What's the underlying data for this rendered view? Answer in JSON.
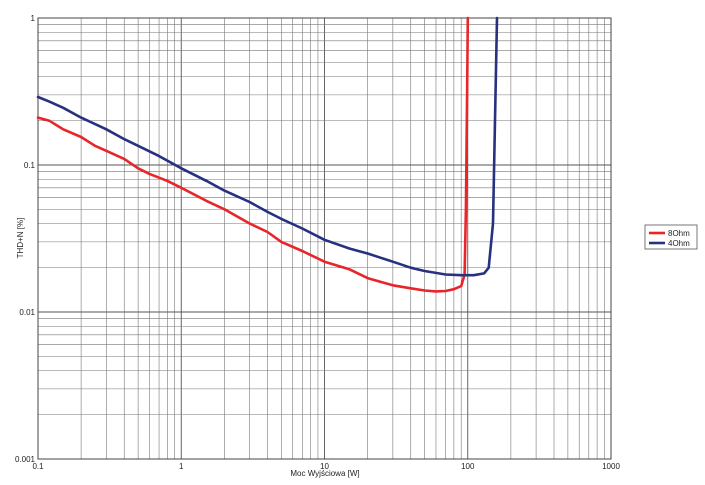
{
  "chart_data": {
    "type": "line",
    "title": "",
    "xlabel": "Moc Wyjściowa [W]",
    "ylabel": "THD+N [%]",
    "xscale": "log",
    "yscale": "log",
    "xlim": [
      0.1,
      1000
    ],
    "ylim": [
      0.001,
      1
    ],
    "grid": true,
    "legend_position": "right",
    "x_ticks": [
      "0.1",
      "1",
      "10",
      "100",
      "1000"
    ],
    "y_ticks": [
      "1",
      "0.1",
      "0.01",
      "0.001"
    ],
    "series": [
      {
        "name": "8Ohm",
        "color": "#e8262a",
        "x": [
          0.1,
          0.12,
          0.15,
          0.2,
          0.25,
          0.3,
          0.4,
          0.5,
          0.6,
          0.8,
          1,
          1.5,
          2,
          3,
          4,
          5,
          7,
          10,
          15,
          20,
          30,
          40,
          50,
          60,
          70,
          80,
          90,
          95,
          97,
          99,
          100
        ],
        "y": [
          0.21,
          0.2,
          0.175,
          0.155,
          0.135,
          0.125,
          0.11,
          0.095,
          0.087,
          0.078,
          0.07,
          0.057,
          0.05,
          0.04,
          0.035,
          0.03,
          0.026,
          0.022,
          0.0195,
          0.017,
          0.0152,
          0.0145,
          0.014,
          0.0138,
          0.0139,
          0.0143,
          0.015,
          0.018,
          0.05,
          0.3,
          1
        ]
      },
      {
        "name": "4Ohm",
        "color": "#27317f",
        "x": [
          0.1,
          0.12,
          0.15,
          0.2,
          0.3,
          0.4,
          0.5,
          0.7,
          1,
          1.5,
          2,
          3,
          4,
          5,
          7,
          10,
          15,
          20,
          30,
          40,
          50,
          70,
          90,
          110,
          130,
          140,
          150,
          155,
          160
        ],
        "y": [
          0.29,
          0.27,
          0.245,
          0.21,
          0.175,
          0.15,
          0.135,
          0.115,
          0.095,
          0.078,
          0.067,
          0.056,
          0.048,
          0.043,
          0.037,
          0.031,
          0.027,
          0.025,
          0.022,
          0.02,
          0.019,
          0.018,
          0.0178,
          0.0178,
          0.0183,
          0.02,
          0.04,
          0.2,
          1
        ]
      }
    ]
  }
}
